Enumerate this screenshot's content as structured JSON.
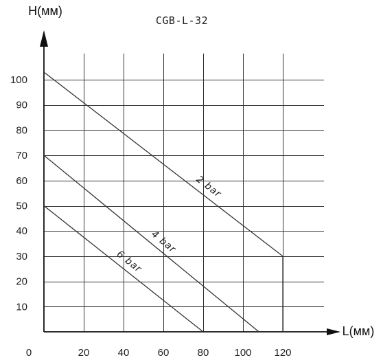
{
  "chart_data": {
    "type": "line",
    "title": "CGB-L-32",
    "xlabel": "L(мм)",
    "ylabel": "H(мм)",
    "xlim": [
      0,
      120
    ],
    "ylim": [
      0,
      100
    ],
    "grid": true,
    "x_ticks": [
      {
        "value": 0,
        "label": "0"
      },
      {
        "value": 20,
        "label": "20"
      },
      {
        "value": 40,
        "label": "40"
      },
      {
        "value": 60,
        "label": "60"
      },
      {
        "value": 80,
        "label": "80"
      },
      {
        "value": 100,
        "label": "100"
      },
      {
        "value": 120,
        "label": "120"
      }
    ],
    "y_ticks": [
      {
        "value": 10,
        "label": "10"
      },
      {
        "value": 20,
        "label": "20"
      },
      {
        "value": 30,
        "label": "30"
      },
      {
        "value": 40,
        "label": "40"
      },
      {
        "value": 50,
        "label": "50"
      },
      {
        "value": 60,
        "label": "60"
      },
      {
        "value": 70,
        "label": "70"
      },
      {
        "value": 80,
        "label": "80"
      },
      {
        "value": 90,
        "label": "90"
      },
      {
        "value": 100,
        "label": "100"
      }
    ],
    "series": [
      {
        "name": "2 bar",
        "points": [
          [
            0,
            103
          ],
          [
            120,
            30
          ],
          [
            120,
            0
          ]
        ]
      },
      {
        "name": "4 bar",
        "points": [
          [
            0,
            70
          ],
          [
            108,
            0
          ]
        ]
      },
      {
        "name": "6 bar",
        "points": [
          [
            0,
            50
          ],
          [
            80,
            0
          ]
        ]
      }
    ],
    "colors": {
      "line": "#333333",
      "grid": "#333333",
      "axis": "#111111",
      "text": "#222222"
    }
  }
}
